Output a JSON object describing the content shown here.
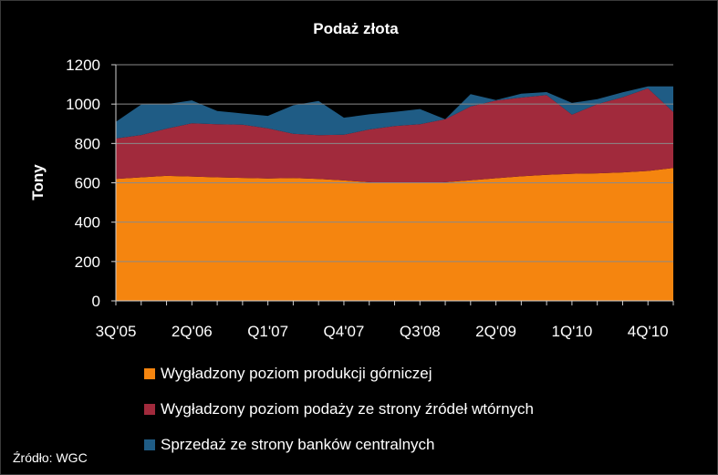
{
  "chart_data": {
    "type": "area",
    "stacked": true,
    "title": "Podaż złota",
    "xlabel": "",
    "ylabel": "Tony",
    "ylim": [
      0,
      1200
    ],
    "yticks": [
      0,
      200,
      400,
      600,
      800,
      1000,
      1200
    ],
    "xtick_labels": [
      "3Q'05",
      "2Q'06",
      "Q1'07",
      "Q4'07",
      "Q3'08",
      "2Q'09",
      "1Q'10",
      "4Q'10"
    ],
    "x": [
      "3Q'05",
      "4Q'05",
      "1Q'06",
      "2Q'06",
      "3Q'06",
      "4Q'06",
      "1Q'07",
      "2Q'07",
      "3Q'07",
      "4Q'07",
      "1Q'08",
      "2Q'08",
      "3Q'08",
      "4Q'08",
      "1Q'09",
      "2Q'09",
      "3Q'09",
      "4Q'09",
      "1Q'10",
      "2Q'10",
      "3Q'10",
      "4Q'10",
      "1Q'11"
    ],
    "series": [
      {
        "name": "Wygładzony poziom produkcji górniczej",
        "color": "#F5850F",
        "values": [
          620,
          628,
          635,
          632,
          628,
          625,
          622,
          624,
          620,
          612,
          603,
          598,
          598,
          603,
          613,
          623,
          633,
          641,
          646,
          648,
          653,
          660,
          675
        ]
      },
      {
        "name": "Wygładzony poziom podaży ze strony źródeł wtórnych",
        "color": "#A12A3C",
        "values": [
          205,
          215,
          240,
          270,
          270,
          270,
          255,
          225,
          222,
          232,
          268,
          290,
          300,
          320,
          375,
          395,
          400,
          405,
          300,
          352,
          382,
          420,
          285
        ]
      },
      {
        "name": "Sprzedaż ze strony banków centralnych",
        "color": "#1F5C85",
        "values": [
          85,
          155,
          125,
          117,
          67,
          57,
          63,
          145,
          174,
          87,
          77,
          72,
          77,
          0,
          63,
          2,
          20,
          15,
          60,
          25,
          25,
          10,
          130
        ]
      }
    ],
    "legend_position": "bottom"
  },
  "source_label": "Źródło: WGC"
}
